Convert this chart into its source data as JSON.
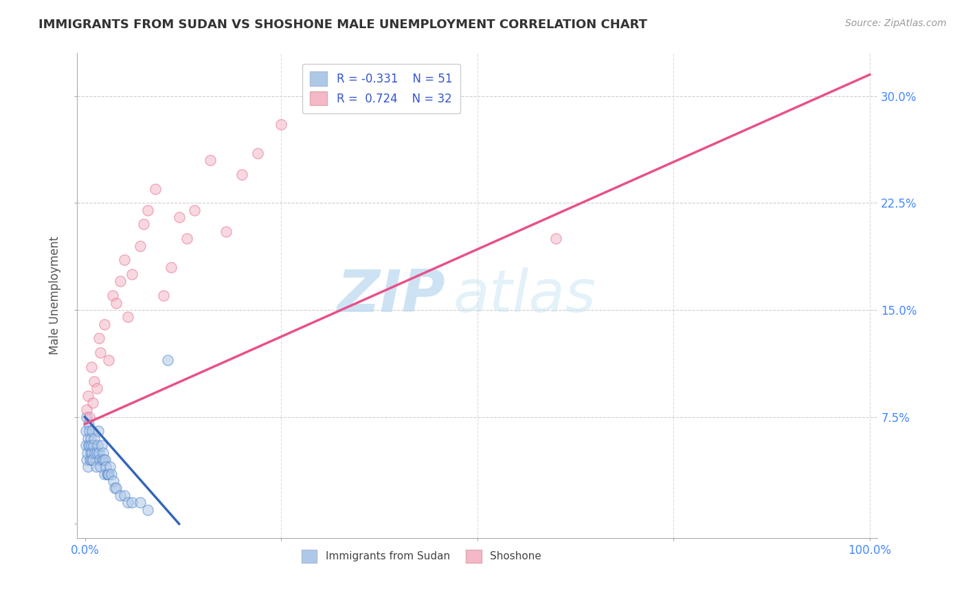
{
  "title": "IMMIGRANTS FROM SUDAN VS SHOSHONE MALE UNEMPLOYMENT CORRELATION CHART",
  "source": "Source: ZipAtlas.com",
  "ylabel": "Male Unemployment",
  "legend_label1": "Immigrants from Sudan",
  "legend_label2": "Shoshone",
  "r1": -0.331,
  "n1": 51,
  "r2": 0.724,
  "n2": 32,
  "xlim": [
    -1,
    101
  ],
  "ylim": [
    -1,
    33
  ],
  "yticks": [
    0,
    7.5,
    15.0,
    22.5,
    30.0
  ],
  "xticks": [
    0,
    25,
    50,
    75,
    100
  ],
  "xtick_labels_show": [
    "0.0%",
    "",
    "",
    "",
    "100.0%"
  ],
  "ytick_labels": [
    "",
    "7.5%",
    "15.0%",
    "22.5%",
    "30.0%"
  ],
  "color_blue": "#aec8e8",
  "color_pink": "#f4b8c8",
  "edge_blue": "#5588cc",
  "edge_pink": "#e87090",
  "line_blue": "#3366bb",
  "line_pink": "#e8508a",
  "watermark_zip": "ZIP",
  "watermark_atlas": "atlas",
  "blue_scatter_x": [
    0.1,
    0.15,
    0.2,
    0.25,
    0.3,
    0.35,
    0.4,
    0.45,
    0.5,
    0.55,
    0.6,
    0.65,
    0.7,
    0.75,
    0.8,
    0.85,
    0.9,
    0.95,
    1.0,
    1.1,
    1.2,
    1.3,
    1.4,
    1.5,
    1.6,
    1.7,
    1.8,
    1.9,
    2.0,
    2.1,
    2.2,
    2.3,
    2.4,
    2.5,
    2.6,
    2.7,
    2.8,
    2.9,
    3.0,
    3.2,
    3.4,
    3.6,
    3.8,
    4.0,
    4.5,
    5.0,
    5.5,
    6.0,
    7.0,
    8.0,
    10.5
  ],
  "blue_scatter_y": [
    5.5,
    6.5,
    4.5,
    7.5,
    5.0,
    6.0,
    4.0,
    5.5,
    7.0,
    6.5,
    5.5,
    4.5,
    5.0,
    6.0,
    4.5,
    5.5,
    6.5,
    5.0,
    4.5,
    5.5,
    6.0,
    5.0,
    4.0,
    5.0,
    5.5,
    6.5,
    5.0,
    4.5,
    4.0,
    5.5,
    4.5,
    5.0,
    4.5,
    3.5,
    4.5,
    4.0,
    3.5,
    3.5,
    3.5,
    4.0,
    3.5,
    3.0,
    2.5,
    2.5,
    2.0,
    2.0,
    1.5,
    1.5,
    1.5,
    1.0,
    11.5
  ],
  "pink_scatter_x": [
    0.2,
    0.4,
    0.6,
    0.8,
    1.0,
    1.2,
    1.5,
    1.8,
    2.0,
    2.5,
    3.0,
    3.5,
    4.0,
    4.5,
    5.0,
    5.5,
    6.0,
    7.0,
    7.5,
    8.0,
    9.0,
    10.0,
    11.0,
    12.0,
    13.0,
    14.0,
    16.0,
    18.0,
    20.0,
    22.0,
    25.0,
    60.0
  ],
  "pink_scatter_y": [
    8.0,
    9.0,
    7.5,
    11.0,
    8.5,
    10.0,
    9.5,
    13.0,
    12.0,
    14.0,
    11.5,
    16.0,
    15.5,
    17.0,
    18.5,
    14.5,
    17.5,
    19.5,
    21.0,
    22.0,
    23.5,
    16.0,
    18.0,
    21.5,
    20.0,
    22.0,
    25.5,
    20.5,
    24.5,
    26.0,
    28.0,
    20.0
  ],
  "blue_trend_x": [
    0,
    12
  ],
  "blue_trend_y": [
    7.5,
    0.0
  ],
  "pink_trend_x": [
    0,
    100
  ],
  "pink_trend_y": [
    7.0,
    31.5
  ]
}
